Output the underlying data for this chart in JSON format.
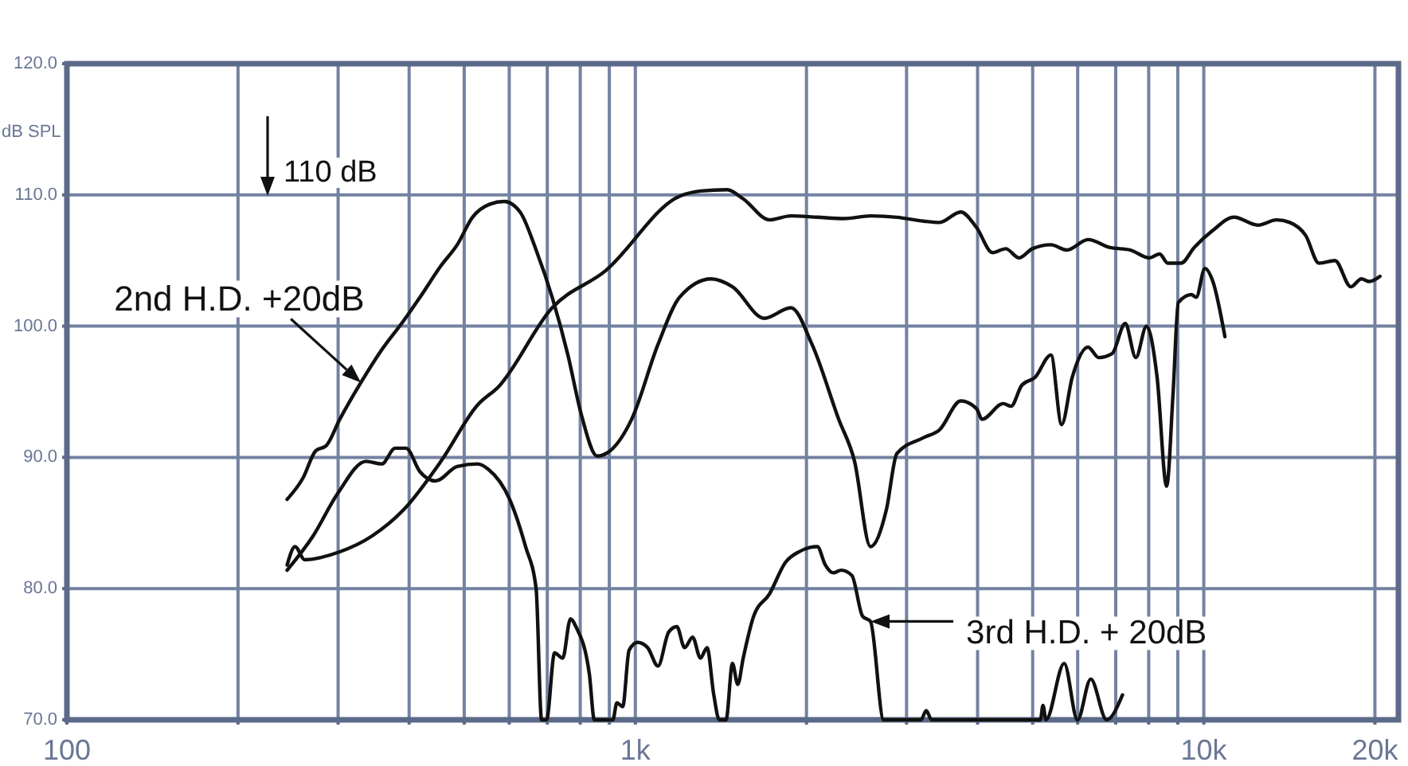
{
  "chart_data": {
    "type": "line",
    "ylabel": "dB SPL",
    "log": "x",
    "grid": true,
    "xlim": [
      100,
      22000
    ],
    "ylim": [
      70,
      120
    ],
    "xticks": [
      {
        "value": 100,
        "label": "100"
      },
      {
        "value": 200,
        "label": null
      },
      {
        "value": 300,
        "label": null
      },
      {
        "value": 400,
        "label": null
      },
      {
        "value": 500,
        "label": null
      },
      {
        "value": 600,
        "label": null
      },
      {
        "value": 700,
        "label": null
      },
      {
        "value": 800,
        "label": null
      },
      {
        "value": 900,
        "label": null
      },
      {
        "value": 1000,
        "label": "1k"
      },
      {
        "value": 2000,
        "label": null
      },
      {
        "value": 3000,
        "label": null
      },
      {
        "value": 4000,
        "label": null
      },
      {
        "value": 5000,
        "label": null
      },
      {
        "value": 6000,
        "label": null
      },
      {
        "value": 7000,
        "label": null
      },
      {
        "value": 8000,
        "label": null
      },
      {
        "value": 9000,
        "label": null
      },
      {
        "value": 10000,
        "label": "10k"
      },
      {
        "value": 20000,
        "label": "20k"
      }
    ],
    "yticks": [
      {
        "value": 70,
        "label": "70.0"
      },
      {
        "value": 80,
        "label": "80.0"
      },
      {
        "value": 90,
        "label": "90.0"
      },
      {
        "value": 100,
        "label": "100.0"
      },
      {
        "value": 110,
        "label": "110.0"
      },
      {
        "value": 120,
        "label": "120.0"
      }
    ],
    "series": [
      {
        "color": "#111111",
        "x": [
          244,
          252,
          262,
          302,
          344,
          391,
          455,
          528,
          575,
          714,
          885,
          1196,
          1302,
          1451,
          1548,
          1722,
          1878,
          2090,
          2327,
          2592,
          2885,
          3214,
          3428,
          3736,
          3985,
          4250,
          4484,
          4731,
          4993,
          5384,
          5742,
          6258,
          6823,
          7431,
          8017,
          8364,
          8640,
          9117,
          9622,
          10375,
          11303,
          12456,
          13428,
          14167,
          15113,
          15947,
          17011,
          18144,
          18937,
          19558,
          20417
        ],
        "values": [
          81.8,
          83.2,
          82.2,
          82.8,
          84.0,
          86.0,
          89.7,
          94.0,
          95.4,
          101.4,
          104.2,
          109.9,
          110.3,
          110.4,
          109.7,
          108.1,
          108.4,
          108.3,
          108.2,
          108.4,
          108.3,
          108.0,
          107.9,
          108.7,
          107.5,
          105.6,
          105.9,
          105.2,
          105.9,
          106.2,
          105.8,
          106.6,
          106.0,
          105.8,
          105.2,
          105.5,
          104.8,
          104.8,
          106.0,
          107.3,
          108.3,
          107.7,
          108.1,
          107.9,
          106.9,
          104.8,
          105.0,
          103.0,
          103.6,
          103.4,
          103.8
        ]
      },
      {
        "name": "2nd H.D. +20dB",
        "color": "#111111",
        "x": [
          244,
          260,
          274,
          286,
          302,
          329,
          358,
          391,
          418,
          455,
          486,
          517,
          555,
          588,
          627,
          669,
          714,
          761,
          803,
          857,
          903,
          985,
          1096,
          1196,
          1360,
          1482,
          1686,
          1878,
          2046,
          2279,
          2430,
          2592,
          2764,
          2885,
          3214,
          3428,
          3736,
          3985,
          4071,
          4437,
          4581,
          4785,
          5049,
          5384,
          5622,
          5869,
          6258,
          6534,
          6897,
          7274,
          7594,
          7928,
          8277,
          8603,
          8830,
          9020,
          9515,
          9698,
          10044,
          10375,
          10893
        ],
        "values": [
          86.8,
          88.4,
          90.5,
          90.9,
          92.9,
          95.7,
          98.2,
          100.4,
          102.2,
          104.6,
          106.2,
          108.3,
          109.3,
          109.5,
          108.7,
          105.8,
          102.2,
          97.8,
          93.3,
          90.1,
          90.5,
          92.9,
          98.6,
          102.2,
          103.6,
          103.0,
          100.6,
          101.4,
          98.6,
          92.9,
          89.7,
          83.2,
          86.0,
          90.3,
          91.5,
          92.1,
          94.3,
          93.7,
          92.9,
          94.1,
          93.9,
          95.5,
          96.1,
          97.8,
          92.5,
          96.1,
          98.4,
          97.6,
          97.9,
          100.2,
          97.6,
          100.0,
          96.1,
          87.8,
          94.9,
          101.8,
          102.4,
          102.2,
          104.4,
          103.4,
          99.2
        ]
      },
      {
        "name": "3rd H.D. + 20dB",
        "color": "#111111",
        "x": [
          244,
          271,
          299,
          336,
          358,
          378,
          395,
          418,
          445,
          486,
          528,
          551,
          601,
          641,
          669,
          684,
          698,
          721,
          745,
          769,
          786,
          830,
          847,
          913,
          928,
          950,
          975,
          1009,
          1051,
          1096,
          1145,
          1183,
          1221,
          1261,
          1302,
          1337,
          1374,
          1405,
          1444,
          1482,
          1514,
          1548,
          1615,
          1722,
          1837,
          1939,
          2090,
          2159,
          2230,
          2302,
          2404,
          2510,
          2592,
          2735,
          3180,
          3249,
          3320,
          5159,
          5213,
          5277,
          5681,
          5995,
          6326,
          6747,
          7195
        ],
        "values": [
          81.4,
          84.0,
          87.2,
          89.7,
          89.5,
          90.7,
          90.7,
          88.9,
          88.2,
          89.3,
          89.5,
          89.1,
          86.8,
          83.2,
          80.0,
          70.0,
          70.0,
          75.1,
          74.7,
          77.7,
          77.1,
          73.5,
          70.0,
          70.0,
          71.3,
          71.0,
          75.3,
          75.9,
          75.5,
          74.1,
          76.7,
          77.1,
          75.5,
          76.3,
          74.7,
          75.5,
          71.9,
          70.0,
          70.0,
          74.3,
          72.7,
          74.7,
          77.9,
          79.6,
          82.0,
          82.8,
          83.2,
          81.8,
          81.2,
          81.4,
          81.0,
          77.9,
          77.5,
          70.0,
          70.0,
          70.7,
          70.0,
          70.0,
          71.1,
          70.0,
          74.3,
          70.0,
          73.1,
          70.0,
          71.9
        ]
      }
    ],
    "annotations": [
      "110 dB"
    ]
  }
}
